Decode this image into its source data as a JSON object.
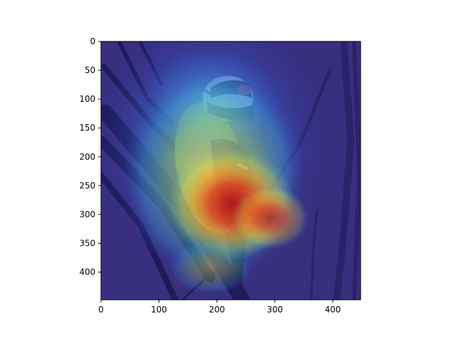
{
  "figure": {
    "image_subject": "downy woodpecker perched on a branch with heatmap overlay",
    "image_extent": {
      "x": [
        0,
        448
      ],
      "y": [
        0,
        448
      ]
    },
    "y_axis_inverted": true,
    "colormap": "jet",
    "x_ticks": [
      {
        "value": 0,
        "label": "0"
      },
      {
        "value": 100,
        "label": "100"
      },
      {
        "value": 200,
        "label": "200"
      },
      {
        "value": 300,
        "label": "300"
      },
      {
        "value": 400,
        "label": "400"
      }
    ],
    "y_ticks": [
      {
        "value": 0,
        "label": "0"
      },
      {
        "value": 50,
        "label": "50"
      },
      {
        "value": 100,
        "label": "100"
      },
      {
        "value": 150,
        "label": "150"
      },
      {
        "value": 200,
        "label": "200"
      },
      {
        "value": 250,
        "label": "250"
      },
      {
        "value": 300,
        "label": "300"
      },
      {
        "value": 350,
        "label": "350"
      },
      {
        "value": 400,
        "label": "400"
      }
    ],
    "colors": {
      "background_purple": "#3b2f6e",
      "branch_dark": "#1c1540",
      "bird_yellow": "#e8e05a",
      "hot_red": "#c8201e",
      "warm_orange": "#f08a2a",
      "cool_cyan": "#5fc8d8",
      "mid_green": "#7ad07a"
    }
  }
}
